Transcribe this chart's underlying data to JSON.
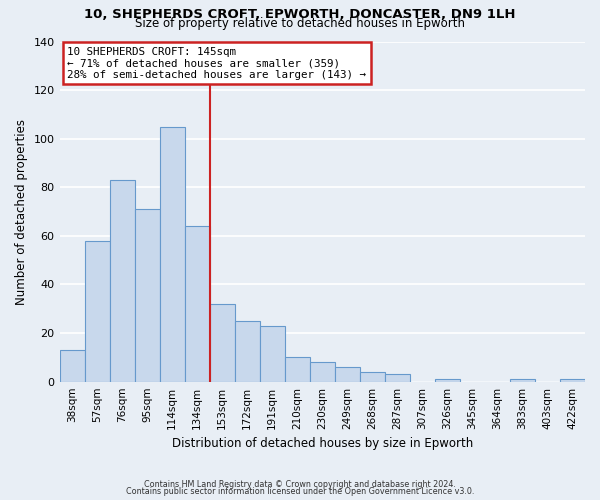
{
  "title1": "10, SHEPHERDS CROFT, EPWORTH, DONCASTER, DN9 1LH",
  "title2": "Size of property relative to detached houses in Epworth",
  "xlabel": "Distribution of detached houses by size in Epworth",
  "ylabel": "Number of detached properties",
  "categories": [
    "38sqm",
    "57sqm",
    "76sqm",
    "95sqm",
    "114sqm",
    "134sqm",
    "153sqm",
    "172sqm",
    "191sqm",
    "210sqm",
    "230sqm",
    "249sqm",
    "268sqm",
    "287sqm",
    "307sqm",
    "326sqm",
    "345sqm",
    "364sqm",
    "383sqm",
    "403sqm",
    "422sqm"
  ],
  "values": [
    13,
    58,
    83,
    71,
    105,
    64,
    32,
    25,
    23,
    10,
    8,
    6,
    4,
    3,
    0,
    1,
    0,
    0,
    1,
    0,
    1
  ],
  "bar_color": "#c8d8ec",
  "bar_edge_color": "#6699cc",
  "background_color": "#e8eef5",
  "grid_color": "#ffffff",
  "vline_x_index": 5.5,
  "vline_color": "#cc2222",
  "annotation_text": "10 SHEPHERDS CROFT: 145sqm\n← 71% of detached houses are smaller (359)\n28% of semi-detached houses are larger (143) →",
  "annotation_box_color": "#ffffff",
  "annotation_box_edge_color": "#cc2222",
  "ylim": [
    0,
    140
  ],
  "yticks": [
    0,
    20,
    40,
    60,
    80,
    100,
    120,
    140
  ],
  "footer1": "Contains HM Land Registry data © Crown copyright and database right 2024.",
  "footer2": "Contains public sector information licensed under the Open Government Licence v3.0."
}
